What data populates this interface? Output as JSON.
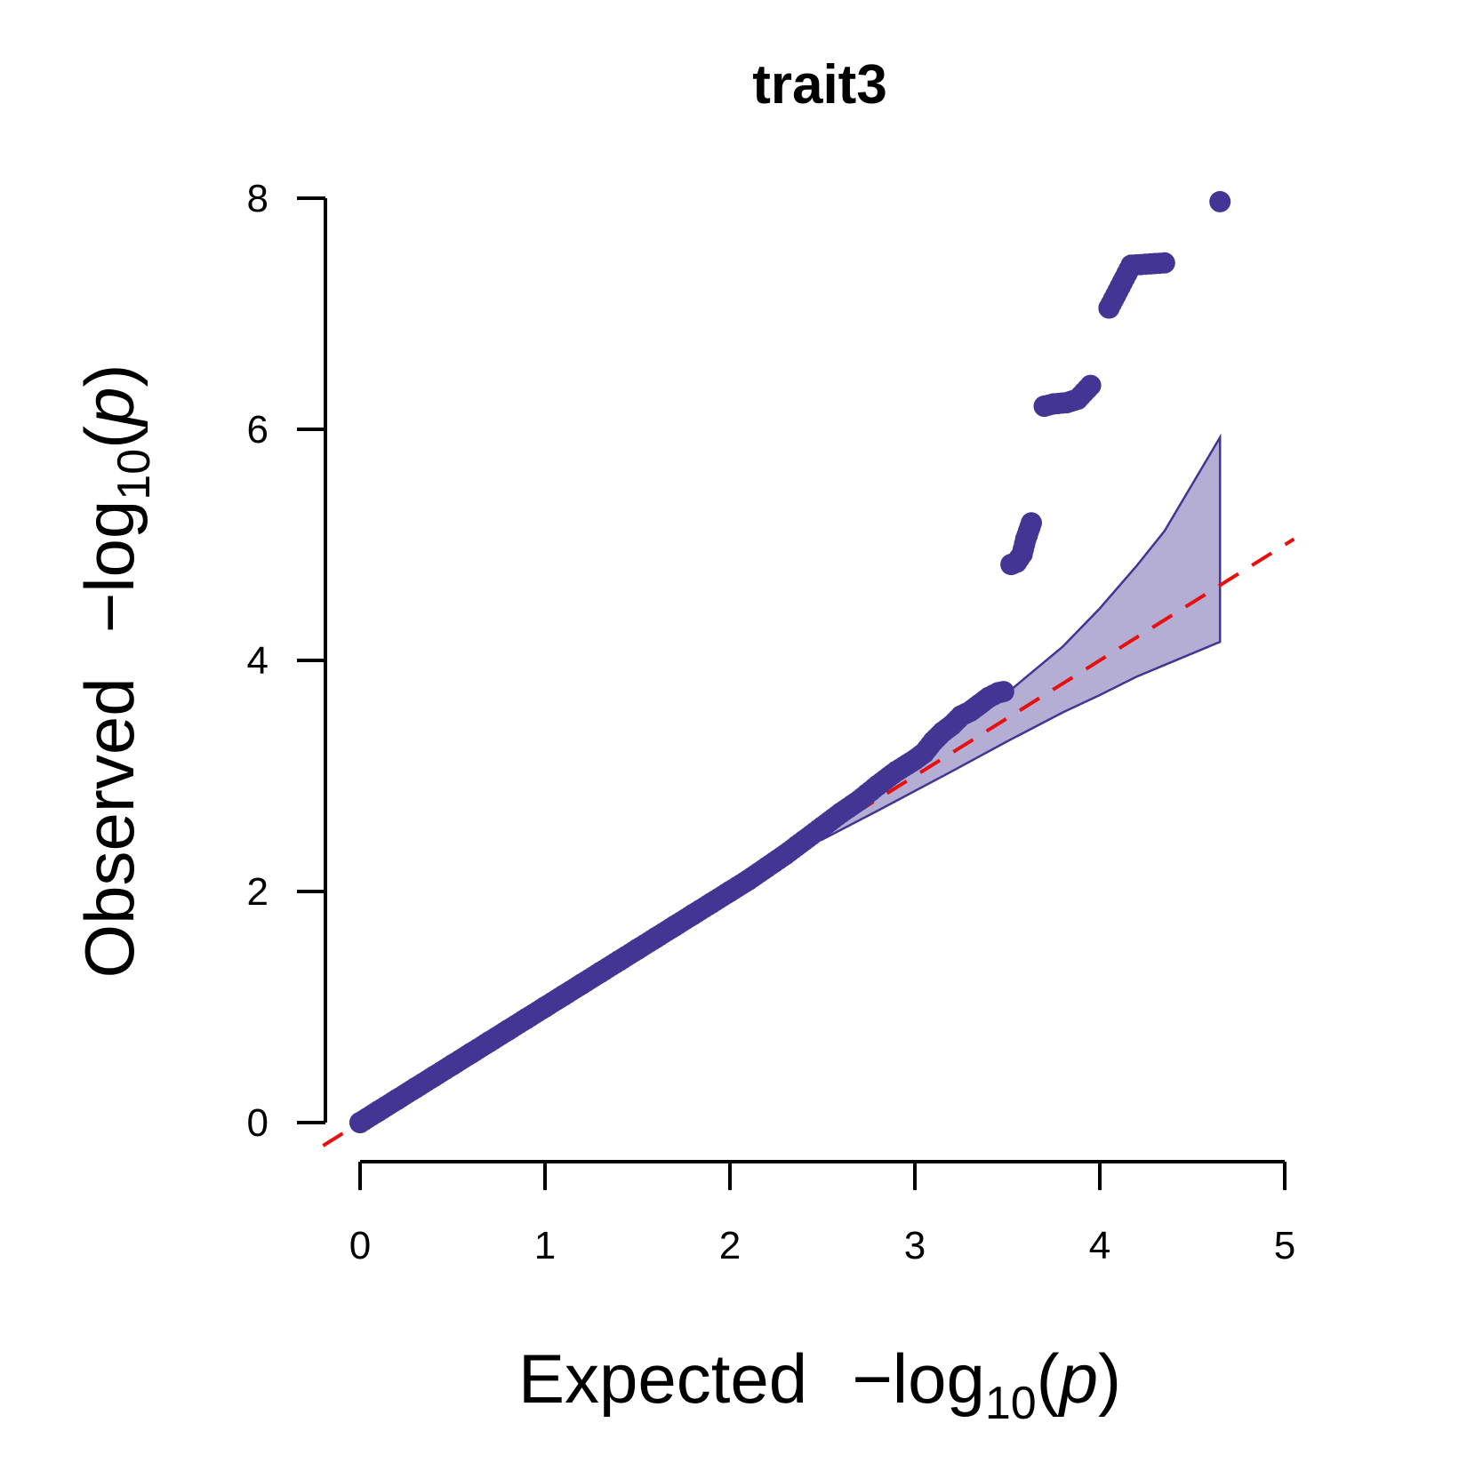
{
  "chart_data": {
    "type": "scatter",
    "title": "trait3",
    "xlabel": {
      "prefix": "Expected",
      "func": "−log",
      "sub": "10",
      "var": "p"
    },
    "ylabel": {
      "prefix": "Observed",
      "func": "−log",
      "sub": "10",
      "var": "p"
    },
    "xlim": [
      0,
      5
    ],
    "ylim": [
      0,
      8
    ],
    "x_ticks": [
      "0",
      "1",
      "2",
      "3",
      "4",
      "5"
    ],
    "y_ticks": [
      "0",
      "2",
      "4",
      "6",
      "8"
    ],
    "reference_line": {
      "slope": 1,
      "intercept": 0,
      "style": "dashed",
      "color": "#e8100f"
    },
    "confidence_band": {
      "color": "#433593",
      "x": [
        2.5,
        2.8,
        3.0,
        3.2,
        3.5,
        3.8,
        4.0,
        4.2,
        4.35,
        4.65
      ],
      "upper": [
        2.6,
        2.92,
        3.14,
        3.36,
        3.72,
        4.12,
        4.45,
        4.82,
        5.12,
        5.93
      ],
      "lower": [
        2.45,
        2.7,
        2.87,
        3.04,
        3.3,
        3.55,
        3.7,
        3.86,
        3.96,
        4.16
      ]
    },
    "series": [
      {
        "color": "#433593",
        "x": [
          0.0,
          0.1,
          0.2,
          0.3,
          0.4,
          0.5,
          0.6,
          0.7,
          0.8,
          0.9,
          1.0,
          1.1,
          1.2,
          1.3,
          1.4,
          1.5,
          1.6,
          1.7,
          1.8,
          1.9,
          2.0,
          2.1,
          2.2,
          2.3,
          2.4,
          2.5,
          2.6,
          2.7,
          2.8,
          2.9,
          3.0,
          3.05,
          3.1,
          3.15,
          3.2,
          3.25,
          3.3,
          3.35,
          3.4,
          3.45,
          3.48,
          3.52,
          3.55,
          3.58,
          3.6,
          3.63,
          3.7,
          3.75,
          3.82,
          3.88,
          3.95,
          4.05,
          4.17,
          4.35,
          4.65
        ],
        "y": [
          0.0,
          0.1,
          0.2,
          0.3,
          0.4,
          0.5,
          0.6,
          0.7,
          0.8,
          0.9,
          1.0,
          1.1,
          1.2,
          1.3,
          1.4,
          1.5,
          1.6,
          1.7,
          1.8,
          1.9,
          2.0,
          2.1,
          2.21,
          2.32,
          2.44,
          2.56,
          2.68,
          2.79,
          2.92,
          3.04,
          3.14,
          3.2,
          3.3,
          3.38,
          3.44,
          3.52,
          3.56,
          3.62,
          3.68,
          3.72,
          3.73,
          4.83,
          4.85,
          4.92,
          5.05,
          5.19,
          6.2,
          6.22,
          6.23,
          6.26,
          6.38,
          7.05,
          7.42,
          7.44,
          7.97
        ]
      }
    ]
  }
}
